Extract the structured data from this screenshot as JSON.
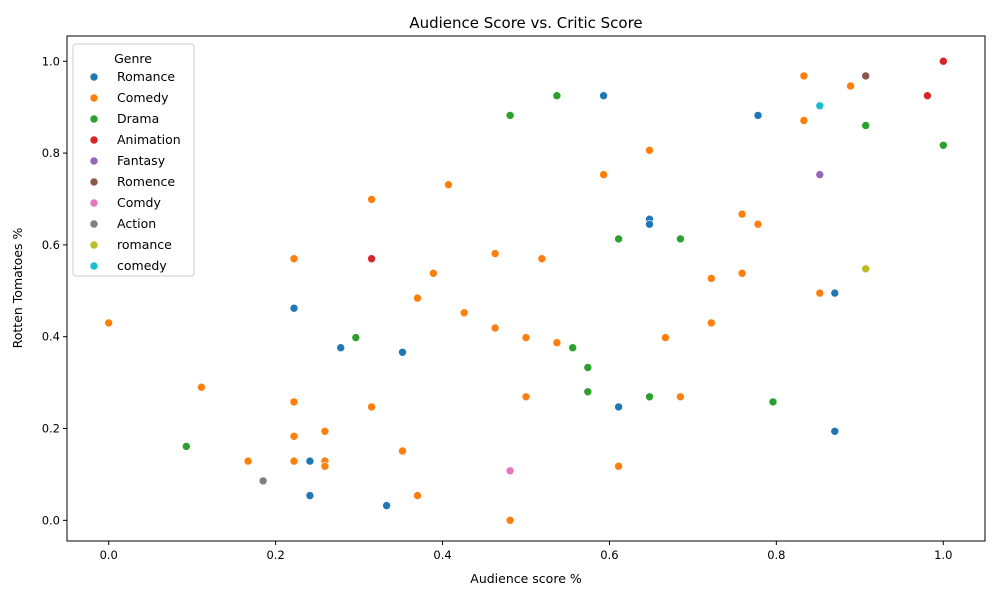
{
  "chart_data": {
    "type": "scatter",
    "title": "Audience Score vs. Critic Score",
    "xlabel": "Audience score %",
    "ylabel": "Rotten Tomatoes %",
    "xlim": [
      -0.05,
      1.05
    ],
    "ylim": [
      -0.045,
      1.055
    ],
    "xticks": [
      "0.0",
      "0.2",
      "0.4",
      "0.6",
      "0.8",
      "1.0"
    ],
    "yticks": [
      "0.0",
      "0.2",
      "0.4",
      "0.6",
      "0.8",
      "1.0"
    ],
    "grid": false,
    "legend": {
      "title": "Genre",
      "placement": "top-left"
    },
    "series": [
      {
        "name": "Romance",
        "color": "#1f77b4",
        "points": [
          [
            0.593,
            0.925
          ],
          [
            0.778,
            0.882
          ],
          [
            0.648,
            0.656
          ],
          [
            0.648,
            0.645
          ],
          [
            0.87,
            0.495
          ],
          [
            0.222,
            0.462
          ],
          [
            0.278,
            0.376
          ],
          [
            0.352,
            0.366
          ],
          [
            0.611,
            0.247
          ],
          [
            0.87,
            0.194
          ],
          [
            0.241,
            0.129
          ],
          [
            0.241,
            0.054
          ],
          [
            0.333,
            0.032
          ]
        ]
      },
      {
        "name": "Comedy",
        "color": "#ff7f0e",
        "points": [
          [
            0.833,
            0.968
          ],
          [
            0.889,
            0.946
          ],
          [
            0.833,
            0.871
          ],
          [
            0.648,
            0.806
          ],
          [
            0.593,
            0.753
          ],
          [
            0.407,
            0.731
          ],
          [
            0.315,
            0.699
          ],
          [
            0.759,
            0.667
          ],
          [
            0.778,
            0.645
          ],
          [
            0.463,
            0.581
          ],
          [
            0.519,
            0.57
          ],
          [
            0.222,
            0.57
          ],
          [
            0.389,
            0.538
          ],
          [
            0.759,
            0.538
          ],
          [
            0.722,
            0.527
          ],
          [
            0.852,
            0.495
          ],
          [
            0.37,
            0.484
          ],
          [
            0.426,
            0.452
          ],
          [
            0.463,
            0.419
          ],
          [
            0.722,
            0.43
          ],
          [
            0.0,
            0.43
          ],
          [
            0.5,
            0.398
          ],
          [
            0.667,
            0.398
          ],
          [
            0.537,
            0.387
          ],
          [
            0.111,
            0.29
          ],
          [
            0.5,
            0.269
          ],
          [
            0.685,
            0.269
          ],
          [
            0.222,
            0.258
          ],
          [
            0.315,
            0.247
          ],
          [
            0.259,
            0.194
          ],
          [
            0.222,
            0.183
          ],
          [
            0.352,
            0.151
          ],
          [
            0.167,
            0.129
          ],
          [
            0.222,
            0.129
          ],
          [
            0.259,
            0.129
          ],
          [
            0.259,
            0.118
          ],
          [
            0.611,
            0.118
          ],
          [
            0.37,
            0.054
          ],
          [
            0.481,
            0.0
          ]
        ]
      },
      {
        "name": "Drama",
        "color": "#2ca02c",
        "points": [
          [
            0.537,
            0.925
          ],
          [
            0.481,
            0.882
          ],
          [
            0.907,
            0.86
          ],
          [
            1.0,
            0.817
          ],
          [
            0.611,
            0.613
          ],
          [
            0.685,
            0.613
          ],
          [
            0.296,
            0.398
          ],
          [
            0.556,
            0.376
          ],
          [
            0.574,
            0.333
          ],
          [
            0.574,
            0.28
          ],
          [
            0.648,
            0.269
          ],
          [
            0.796,
            0.258
          ],
          [
            0.093,
            0.161
          ]
        ]
      },
      {
        "name": "Animation",
        "color": "#d62728",
        "points": [
          [
            1.0,
            1.0
          ],
          [
            0.981,
            0.925
          ],
          [
            0.315,
            0.57
          ]
        ]
      },
      {
        "name": "Fantasy",
        "color": "#9467bd",
        "points": [
          [
            0.852,
            0.753
          ]
        ]
      },
      {
        "name": "Romence",
        "color": "#8c564b",
        "points": [
          [
            0.907,
            0.968
          ]
        ]
      },
      {
        "name": "Comdy",
        "color": "#e377c2",
        "points": [
          [
            0.481,
            0.108
          ]
        ]
      },
      {
        "name": "Action",
        "color": "#7f7f7f",
        "points": [
          [
            0.185,
            0.086
          ]
        ]
      },
      {
        "name": "romance",
        "color": "#bcbd22",
        "points": [
          [
            0.907,
            0.548
          ]
        ]
      },
      {
        "name": "comedy",
        "color": "#17becf",
        "points": [
          [
            0.852,
            0.903
          ]
        ]
      }
    ]
  }
}
